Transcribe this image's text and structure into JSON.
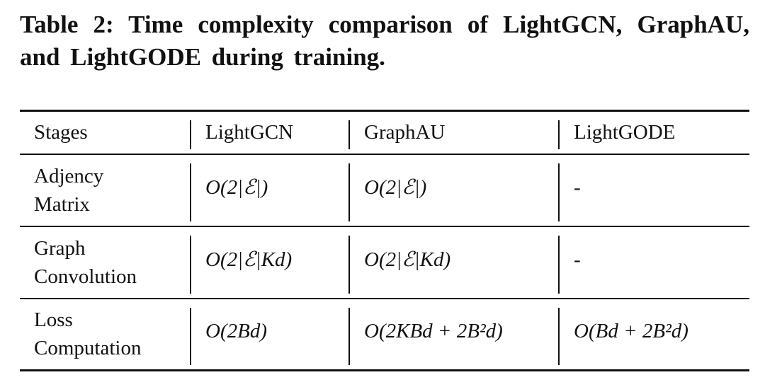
{
  "caption": "Table 2: Time complexity comparison of LightGCN, GraphAU, and LightGODE during training.",
  "table": {
    "header": [
      "Stages",
      "LightGCN",
      "GraphAU",
      "LightGODE"
    ],
    "rows": [
      [
        [
          "Adjency",
          "Matrix"
        ],
        "O(2|ℰ|)",
        "O(2|ℰ|)",
        "-"
      ],
      [
        [
          "Graph",
          "Convolution"
        ],
        "O(2|ℰ|Kd)",
        "O(2|ℰ|Kd)",
        "-"
      ],
      [
        [
          "Loss",
          "Computation"
        ],
        "O(2Bd)",
        "O(2KBd + 2B²d)",
        "O(Bd + 2B²d)"
      ]
    ]
  }
}
